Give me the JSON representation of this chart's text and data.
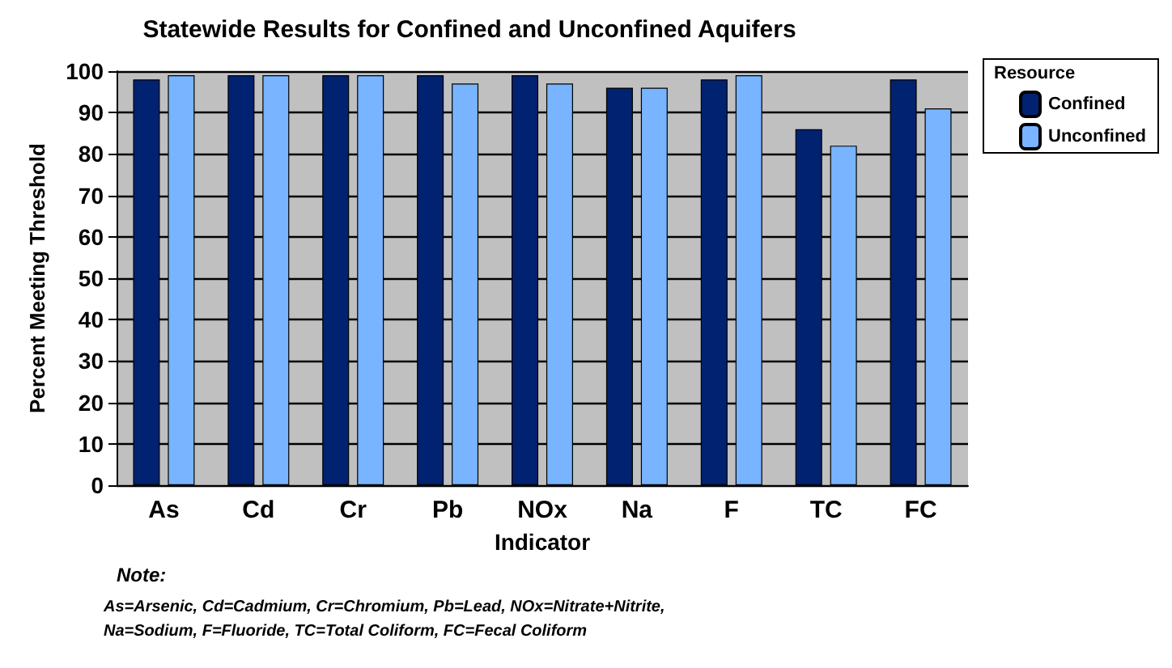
{
  "chart_data": {
    "type": "bar",
    "title": "Statewide Results for Confined and Unconfined Aquifers",
    "xlabel": "Indicator",
    "ylabel": "Percent Meeting Threshold",
    "legend_title": "Resource",
    "categories": [
      "As",
      "Cd",
      "Cr",
      "Pb",
      "NOx",
      "Na",
      "F",
      "TC",
      "FC"
    ],
    "series": [
      {
        "name": "Confined",
        "color": "#002270",
        "values": [
          98,
          99,
          99,
          99,
          99,
          96,
          98,
          86,
          98
        ]
      },
      {
        "name": "Unconfined",
        "color": "#78b4ff",
        "values": [
          99,
          99,
          99,
          97,
          97,
          96,
          99,
          82,
          91
        ]
      }
    ],
    "ylim": [
      0,
      100
    ],
    "yticks": [
      0,
      10,
      20,
      30,
      40,
      50,
      60,
      70,
      80,
      90,
      100
    ],
    "grid": "y",
    "legend": "top right",
    "annotations": [
      "Note:",
      "As=Arsenic, Cd=Cadmium, Cr=Chromium, Pb=Lead, NOx=Nitrate+Nitrite,\nNa=Sodium, F=Fluoride, TC=Total Coliform, FC=Fecal Coliform"
    ]
  }
}
